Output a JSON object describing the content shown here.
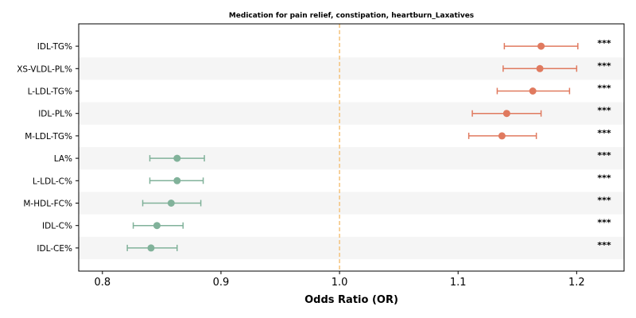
{
  "chart_data": {
    "type": "forest",
    "title": "Medication for pain relief, constipation, heartburn_Laxatives",
    "xlabel": "Odds Ratio (OR)",
    "xlim": [
      0.78,
      1.24
    ],
    "xticks": [
      0.8,
      0.9,
      1.0,
      1.1,
      1.2
    ],
    "xtick_labels": [
      "0.8",
      "0.9",
      "1.0",
      "1.1",
      "1.2"
    ],
    "reference_line": 1.0,
    "reference_color": "#f4c27a",
    "colors": {
      "increase": "#e07a5f",
      "decrease": "#81b29a",
      "stripe": "#f5f5f5"
    },
    "rows": [
      {
        "label": "IDL-TG%",
        "or": 1.17,
        "lo": 1.139,
        "hi": 1.201,
        "sig": "***"
      },
      {
        "label": "XS-VLDL-PL%",
        "or": 1.169,
        "lo": 1.138,
        "hi": 1.2,
        "sig": "***"
      },
      {
        "label": "L-LDL-TG%",
        "or": 1.163,
        "lo": 1.133,
        "hi": 1.194,
        "sig": "***"
      },
      {
        "label": "IDL-PL%",
        "or": 1.141,
        "lo": 1.112,
        "hi": 1.17,
        "sig": "***"
      },
      {
        "label": "M-LDL-TG%",
        "or": 1.137,
        "lo": 1.109,
        "hi": 1.166,
        "sig": "***"
      },
      {
        "label": "LA%",
        "or": 0.863,
        "lo": 0.84,
        "hi": 0.886,
        "sig": "***"
      },
      {
        "label": "L-LDL-C%",
        "or": 0.863,
        "lo": 0.84,
        "hi": 0.885,
        "sig": "***"
      },
      {
        "label": "M-HDL-FC%",
        "or": 0.858,
        "lo": 0.834,
        "hi": 0.883,
        "sig": "***"
      },
      {
        "label": "IDL-C%",
        "or": 0.846,
        "lo": 0.826,
        "hi": 0.868,
        "sig": "***"
      },
      {
        "label": "IDL-CE%",
        "or": 0.841,
        "lo": 0.821,
        "hi": 0.863,
        "sig": "***"
      }
    ]
  }
}
